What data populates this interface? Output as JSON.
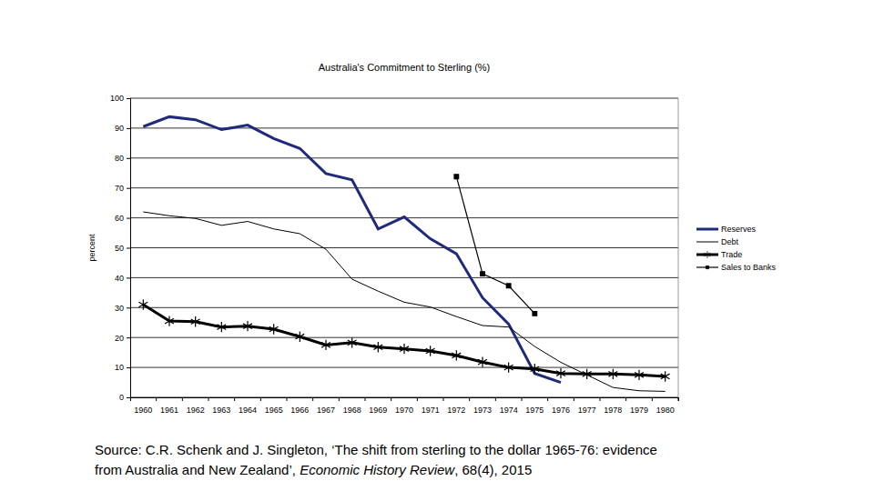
{
  "chart_data": {
    "type": "line",
    "title": "Australia's Commitment to Sterling (%)",
    "y_label": "percent",
    "categories": [
      "1960",
      "1961",
      "1962",
      "1963",
      "1964",
      "1965",
      "1966",
      "1967",
      "1968",
      "1969",
      "1970",
      "1971",
      "1972",
      "1973",
      "1974",
      "1975",
      "1976",
      "1977",
      "1978",
      "1979",
      "1980"
    ],
    "series": [
      {
        "name": "Reserves",
        "color": "#1f2a7a",
        "marker": "none",
        "line_style": "solid",
        "values": [
          90.5,
          93.8,
          92.8,
          89.5,
          91,
          86.5,
          83.2,
          74.8,
          72.7,
          56.3,
          60.3,
          53,
          48,
          33.3,
          24.5,
          8,
          5,
          null,
          null,
          null,
          null
        ]
      },
      {
        "name": "Debt",
        "color": "#000000",
        "marker": "none",
        "line_style": "solid",
        "values": [
          62,
          60.7,
          59.8,
          57.5,
          58.8,
          56.3,
          54.7,
          49.5,
          39.5,
          35.5,
          31.8,
          30.2,
          27,
          24,
          23.5,
          17,
          11.7,
          7.5,
          3.3,
          2.2,
          2
        ]
      },
      {
        "name": "Trade",
        "color": "#000000",
        "marker": "asterisk",
        "line_style": "solid",
        "values": [
          31,
          25.5,
          25.3,
          23.5,
          23.8,
          22.8,
          20.3,
          17.5,
          18.3,
          16.8,
          16.2,
          15.5,
          14,
          11.8,
          10,
          9.5,
          8,
          7.8,
          7.8,
          7.5,
          7
        ]
      },
      {
        "name": "Sales to Banks",
        "color": "#000000",
        "marker": "square",
        "line_style": "solid",
        "values": [
          null,
          null,
          null,
          null,
          null,
          null,
          null,
          null,
          null,
          null,
          null,
          null,
          73.8,
          41.3,
          37.3,
          28,
          null,
          null,
          null,
          null,
          null
        ]
      }
    ],
    "ylim": [
      0,
      100
    ],
    "yticks": [
      0,
      10,
      20,
      30,
      40,
      50,
      60,
      70,
      80,
      90,
      100
    ],
    "grid": true,
    "legend": "right",
    "source_lines": [
      [
        {
          "text": "Source: C.R. Schenk and J. Singleton, ‘The shift from sterling to the dollar 1965-76: evidence"
        }
      ],
      [
        {
          "text": "from Australia and New Zealand’, "
        },
        {
          "text": "Economic History Review",
          "italic": true
        },
        {
          "text": ", 68(4), 2015"
        }
      ]
    ]
  }
}
